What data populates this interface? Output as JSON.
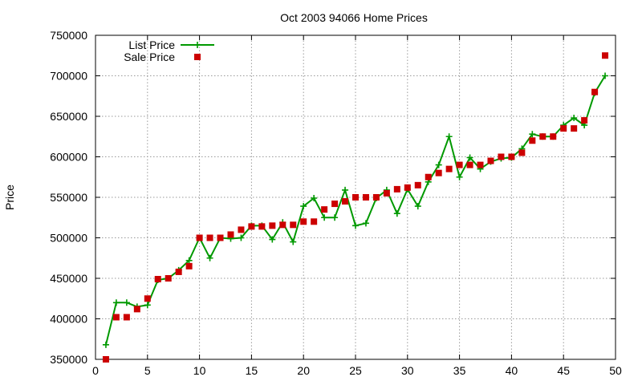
{
  "chart_data": {
    "type": "line",
    "title": "Oct 2003 94066 Home Prices",
    "xlabel": "",
    "ylabel": "Price",
    "xlim": [
      0,
      50
    ],
    "ylim": [
      350000,
      750000
    ],
    "xticks": [
      0,
      5,
      10,
      15,
      20,
      25,
      30,
      35,
      40,
      45,
      50
    ],
    "yticks": [
      350000,
      400000,
      450000,
      500000,
      550000,
      600000,
      650000,
      700000,
      750000
    ],
    "grid": true,
    "legend_position": "top-left",
    "series": [
      {
        "name": "List Price",
        "style": "line+cross",
        "color": "#009900",
        "x": [
          1,
          2,
          3,
          4,
          5,
          6,
          7,
          8,
          9,
          10,
          11,
          12,
          13,
          14,
          15,
          16,
          17,
          18,
          19,
          20,
          21,
          22,
          23,
          24,
          25,
          26,
          27,
          28,
          29,
          30,
          31,
          32,
          33,
          34,
          35,
          36,
          37,
          38,
          39,
          40,
          41,
          42,
          43,
          44,
          45,
          46,
          47,
          48,
          49
        ],
        "values": [
          368000,
          420000,
          420000,
          415000,
          417000,
          448000,
          450000,
          460000,
          472000,
          500000,
          475000,
          500000,
          499000,
          500000,
          515000,
          515000,
          498000,
          519000,
          495000,
          539000,
          549000,
          525000,
          525000,
          559000,
          515000,
          518000,
          549000,
          559000,
          530000,
          560000,
          539000,
          569000,
          590000,
          625000,
          575000,
          599000,
          585000,
          594000,
          598000,
          599000,
          610000,
          628000,
          625000,
          625000,
          639000,
          648000,
          639000,
          679000,
          700000
        ]
      },
      {
        "name": "Sale Price",
        "style": "points",
        "color": "#cc0000",
        "x": [
          1,
          2,
          3,
          4,
          5,
          6,
          7,
          8,
          9,
          10,
          11,
          12,
          13,
          14,
          15,
          16,
          17,
          18,
          19,
          20,
          21,
          22,
          23,
          24,
          25,
          26,
          27,
          28,
          29,
          30,
          31,
          32,
          33,
          34,
          35,
          36,
          37,
          38,
          39,
          40,
          41,
          42,
          43,
          44,
          45,
          46,
          47,
          48,
          49
        ],
        "values": [
          350000,
          402000,
          402000,
          412000,
          425000,
          449000,
          450000,
          458000,
          465000,
          500000,
          500000,
          500000,
          504000,
          510000,
          514000,
          514000,
          515000,
          516000,
          516000,
          520000,
          520000,
          535000,
          542000,
          545000,
          550000,
          550000,
          550000,
          555000,
          560000,
          562000,
          565000,
          575000,
          580000,
          585000,
          590000,
          590000,
          590000,
          595000,
          600000,
          600000,
          605000,
          620000,
          625000,
          625000,
          635000,
          635000,
          645000,
          680000,
          725000
        ]
      }
    ]
  }
}
